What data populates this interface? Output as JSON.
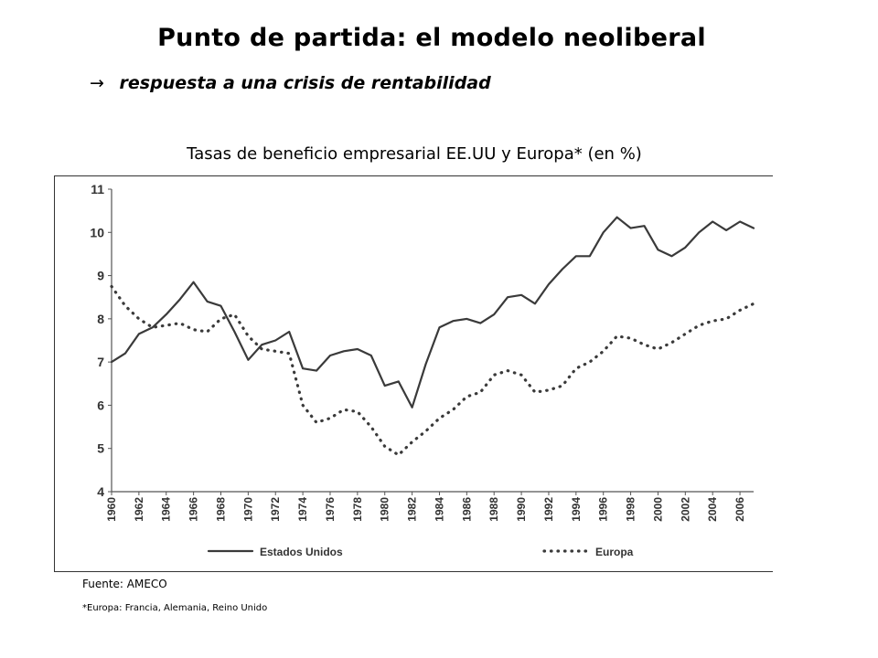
{
  "slide": {
    "title": "Punto de partida: el modelo neoliberal",
    "subtitle_arrow": "→",
    "subtitle": "respuesta a una crisis de rentabilidad",
    "chart_heading": "Tasas de beneficio empresarial EE.UU y Europa* (en %)",
    "source": "Fuente: AMECO",
    "footnote": "*Europa: Francia, Alemania, Reino Unido"
  },
  "chart_data": {
    "type": "line",
    "title": "Tasas de beneficio empresarial EE.UU y Europa* (en %)",
    "xlabel": "",
    "ylabel": "",
    "ylim": [
      4,
      11
    ],
    "xlim": [
      1960,
      2007
    ],
    "yticks": [
      "4",
      "5",
      "6",
      "7",
      "8",
      "9",
      "10",
      "11"
    ],
    "xticks": [
      "1960",
      "1962",
      "1964",
      "1966",
      "1968",
      "1970",
      "1972",
      "1974",
      "1976",
      "1978",
      "1980",
      "1982",
      "1984",
      "1986",
      "1988",
      "1990",
      "1992",
      "1994",
      "1996",
      "1998",
      "2000",
      "2002",
      "2004",
      "2006"
    ],
    "grid": false,
    "legend_position": "bottom",
    "x": [
      1960,
      1961,
      1962,
      1963,
      1964,
      1965,
      1966,
      1967,
      1968,
      1969,
      1970,
      1971,
      1972,
      1973,
      1974,
      1975,
      1976,
      1977,
      1978,
      1979,
      1980,
      1981,
      1982,
      1983,
      1984,
      1985,
      1986,
      1987,
      1988,
      1989,
      1990,
      1991,
      1992,
      1993,
      1994,
      1995,
      1996,
      1997,
      1998,
      1999,
      2000,
      2001,
      2002,
      2003,
      2004,
      2005,
      2006,
      2007
    ],
    "series": [
      {
        "name": "Estados Unidos",
        "style": "solid",
        "values": [
          7.0,
          7.2,
          7.65,
          7.8,
          8.1,
          8.45,
          8.85,
          8.4,
          8.3,
          7.7,
          7.05,
          7.4,
          7.5,
          7.7,
          6.85,
          6.8,
          7.15,
          7.25,
          7.3,
          7.15,
          6.45,
          6.55,
          5.95,
          6.95,
          7.8,
          7.95,
          8.0,
          7.9,
          8.1,
          8.5,
          8.55,
          8.35,
          8.8,
          9.15,
          9.45,
          9.45,
          10.0,
          10.35,
          10.1,
          10.15,
          9.6,
          9.45,
          9.65,
          10.0,
          10.25,
          10.05,
          10.25,
          10.1
        ]
      },
      {
        "name": "Europa",
        "style": "dotted",
        "values": [
          8.75,
          8.3,
          8.0,
          7.8,
          7.85,
          7.9,
          7.75,
          7.7,
          8.0,
          8.1,
          7.6,
          7.3,
          7.25,
          7.2,
          6.0,
          5.6,
          5.7,
          5.9,
          5.85,
          5.5,
          5.05,
          4.85,
          5.15,
          5.4,
          5.7,
          5.9,
          6.2,
          6.3,
          6.7,
          6.8,
          6.7,
          6.3,
          6.35,
          6.45,
          6.85,
          7.0,
          7.25,
          7.6,
          7.55,
          7.4,
          7.3,
          7.45,
          7.65,
          7.85,
          7.95,
          8.0,
          8.2,
          8.35
        ]
      }
    ]
  }
}
